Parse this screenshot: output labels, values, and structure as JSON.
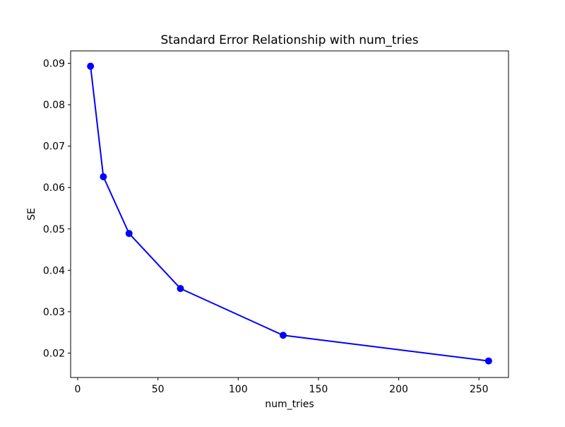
{
  "figure": {
    "background": "#ffffff"
  },
  "chart_data": {
    "type": "line",
    "title": "Standard Error Relationship with num_tries",
    "xlabel": "num_tries",
    "ylabel": "SE",
    "x": [
      8,
      16,
      32,
      64,
      128,
      256
    ],
    "y": [
      0.0893,
      0.0626,
      0.0489,
      0.0356,
      0.0243,
      0.0181
    ],
    "series": [
      {
        "name": "SE",
        "x": [
          8,
          16,
          32,
          64,
          128,
          256
        ],
        "values": [
          0.0893,
          0.0626,
          0.0489,
          0.0356,
          0.0243,
          0.0181
        ]
      }
    ],
    "xlim": [
      -4.4,
      268.4
    ],
    "ylim": [
      0.0141,
      0.093
    ],
    "xticks": [
      0,
      50,
      100,
      150,
      200,
      250
    ],
    "yticks": [
      0.02,
      0.03,
      0.04,
      0.05,
      0.06,
      0.07,
      0.08,
      0.09
    ],
    "xtick_labels": [
      "0",
      "50",
      "100",
      "150",
      "200",
      "250"
    ],
    "ytick_labels": [
      "0.02",
      "0.03",
      "0.04",
      "0.05",
      "0.06",
      "0.07",
      "0.08",
      "0.09"
    ],
    "grid": false,
    "legend": null,
    "line_color": "#0000ff",
    "marker": "circle",
    "marker_color": "#0000ff",
    "axis_color": "#000000"
  }
}
